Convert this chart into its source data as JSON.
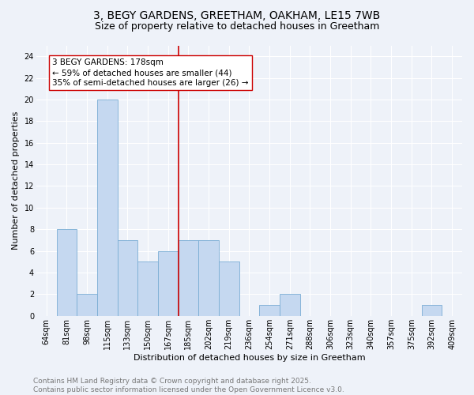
{
  "title_line1": "3, BEGY GARDENS, GREETHAM, OAKHAM, LE15 7WB",
  "title_line2": "Size of property relative to detached houses in Greetham",
  "xlabel": "Distribution of detached houses by size in Greetham",
  "ylabel": "Number of detached properties",
  "categories": [
    "64sqm",
    "81sqm",
    "98sqm",
    "115sqm",
    "133sqm",
    "150sqm",
    "167sqm",
    "185sqm",
    "202sqm",
    "219sqm",
    "236sqm",
    "254sqm",
    "271sqm",
    "288sqm",
    "306sqm",
    "323sqm",
    "340sqm",
    "357sqm",
    "375sqm",
    "392sqm",
    "409sqm"
  ],
  "values": [
    0,
    8,
    2,
    20,
    7,
    5,
    6,
    7,
    7,
    5,
    0,
    1,
    2,
    0,
    0,
    0,
    0,
    0,
    0,
    1,
    0
  ],
  "bar_color": "#c5d8f0",
  "bar_edge_color": "#7aadd4",
  "vline_color": "#cc0000",
  "annotation_text": "3 BEGY GARDENS: 178sqm\n← 59% of detached houses are smaller (44)\n35% of semi-detached houses are larger (26) →",
  "annotation_box_color": "#ffffff",
  "annotation_box_edge": "#cc0000",
  "ylim": [
    0,
    25
  ],
  "yticks": [
    0,
    2,
    4,
    6,
    8,
    10,
    12,
    14,
    16,
    18,
    20,
    22,
    24
  ],
  "footer": "Contains HM Land Registry data © Crown copyright and database right 2025.\nContains public sector information licensed under the Open Government Licence v3.0.",
  "bg_color": "#eef2f9",
  "grid_color": "#ffffff",
  "title_fontsize": 10,
  "subtitle_fontsize": 9,
  "axis_label_fontsize": 8,
  "tick_fontsize": 7,
  "footer_fontsize": 6.5,
  "ann_fontsize": 7.5
}
